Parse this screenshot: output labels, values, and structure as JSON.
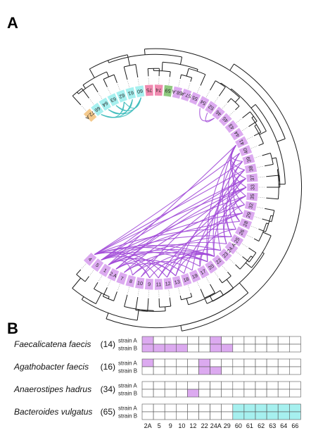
{
  "panel_a": {
    "label": "A",
    "colors": {
      "purple": "#dcaaf0",
      "cyan": "#a6f0ef",
      "pink": "#f08ab0",
      "green": "#8ec97e",
      "orange": "#f4c98c",
      "arc_purple": "#a24bd8",
      "arc_cyan": "#3fbdbd",
      "tree": "#1a1a1a"
    },
    "segments": [
      {
        "label": "72.A",
        "color": "orange"
      },
      {
        "label": "66",
        "color": "cyan"
      },
      {
        "label": "64",
        "color": "cyan"
      },
      {
        "label": "63",
        "color": "cyan"
      },
      {
        "label": "62",
        "color": "cyan"
      },
      {
        "label": "61",
        "color": "cyan"
      },
      {
        "label": "60",
        "color": "cyan"
      },
      {
        "label": "75",
        "color": "pink"
      },
      {
        "label": "74",
        "color": "pink"
      },
      {
        "label": "59",
        "color": "green"
      },
      {
        "label": "58.A",
        "color": "purple"
      },
      {
        "label": "57.A",
        "color": "purple"
      },
      {
        "label": "55",
        "color": "purple"
      },
      {
        "label": "54",
        "color": "purple"
      },
      {
        "label": "52",
        "color": "purple"
      },
      {
        "label": "46",
        "color": "purple"
      },
      {
        "label": "45",
        "color": "purple"
      },
      {
        "label": "43",
        "color": "purple"
      },
      {
        "label": "44",
        "color": "purple"
      },
      {
        "label": "41",
        "color": "purple"
      },
      {
        "label": "40",
        "color": "purple"
      },
      {
        "label": "39",
        "color": "purple"
      },
      {
        "label": "38",
        "color": "purple"
      },
      {
        "label": "37",
        "color": "purple"
      },
      {
        "label": "33",
        "color": "purple"
      },
      {
        "label": "35",
        "color": "purple"
      },
      {
        "label": "32",
        "color": "purple"
      },
      {
        "label": "29",
        "color": "purple"
      },
      {
        "label": "28",
        "color": "purple"
      },
      {
        "label": "26",
        "color": "purple"
      },
      {
        "label": "25",
        "color": "purple"
      },
      {
        "label": "24.A",
        "color": "purple"
      },
      {
        "label": "23",
        "color": "purple"
      },
      {
        "label": "22",
        "color": "purple"
      },
      {
        "label": "20",
        "color": "purple"
      },
      {
        "label": "17",
        "color": "purple"
      },
      {
        "label": "19",
        "color": "purple"
      },
      {
        "label": "18",
        "color": "purple"
      },
      {
        "label": "13",
        "color": "purple"
      },
      {
        "label": "12",
        "color": "purple"
      },
      {
        "label": "11",
        "color": "purple"
      },
      {
        "label": "9",
        "color": "purple"
      },
      {
        "label": "10",
        "color": "purple"
      },
      {
        "label": "8",
        "color": "purple"
      },
      {
        "label": "7",
        "color": "purple"
      },
      {
        "label": "2.A",
        "color": "purple"
      },
      {
        "label": "1",
        "color": "purple"
      },
      {
        "label": "5",
        "color": "purple"
      },
      {
        "label": "4",
        "color": "purple"
      }
    ],
    "links": [
      [
        "4",
        "9"
      ],
      [
        "4",
        "12"
      ],
      [
        "4",
        "20"
      ],
      [
        "4",
        "22"
      ],
      [
        "4",
        "26"
      ],
      [
        "4",
        "33"
      ],
      [
        "4",
        "38"
      ],
      [
        "4",
        "40"
      ],
      [
        "5",
        "11"
      ],
      [
        "5",
        "17"
      ],
      [
        "5",
        "23"
      ],
      [
        "5",
        "25"
      ],
      [
        "5",
        "29"
      ],
      [
        "5",
        "37"
      ],
      [
        "5",
        "39"
      ],
      [
        "1",
        "8"
      ],
      [
        "1",
        "13"
      ],
      [
        "1",
        "20"
      ],
      [
        "1",
        "22"
      ],
      [
        "1",
        "28"
      ],
      [
        "1",
        "35"
      ],
      [
        "1",
        "41"
      ],
      [
        "2.A",
        "9"
      ],
      [
        "2.A",
        "18"
      ],
      [
        "2.A",
        "24.A"
      ],
      [
        "2.A",
        "33"
      ],
      [
        "2.A",
        "37"
      ],
      [
        "7",
        "13"
      ],
      [
        "7",
        "22"
      ],
      [
        "7",
        "32"
      ],
      [
        "8",
        "19"
      ],
      [
        "8",
        "25"
      ],
      [
        "9",
        "20"
      ],
      [
        "10",
        "22"
      ],
      [
        "10",
        "33"
      ],
      [
        "11",
        "22"
      ],
      [
        "11",
        "29"
      ],
      [
        "12",
        "23"
      ],
      [
        "12",
        "35"
      ],
      [
        "13",
        "22"
      ],
      [
        "13",
        "37"
      ],
      [
        "17",
        "22"
      ],
      [
        "18",
        "29"
      ],
      [
        "19",
        "33"
      ],
      [
        "20",
        "38"
      ],
      [
        "20",
        "41"
      ],
      [
        "22",
        "35"
      ],
      [
        "22",
        "39"
      ],
      [
        "23",
        "40"
      ],
      [
        "24.A",
        "37"
      ],
      [
        "25",
        "38"
      ],
      [
        "25",
        "41"
      ],
      [
        "26",
        "37"
      ],
      [
        "28",
        "35"
      ],
      [
        "28",
        "40"
      ],
      [
        "29",
        "38"
      ],
      [
        "32",
        "39"
      ],
      [
        "33",
        "41"
      ],
      [
        "35",
        "40"
      ],
      [
        "37",
        "41"
      ],
      [
        "38",
        "41"
      ],
      [
        "39",
        "41"
      ],
      [
        "24.A",
        "32"
      ],
      [
        "17",
        "26"
      ],
      [
        "46",
        "52"
      ],
      [
        "46",
        "54"
      ],
      [
        "66",
        "62"
      ],
      [
        "66",
        "61"
      ],
      [
        "66",
        "60"
      ],
      [
        "64",
        "62"
      ],
      [
        "64",
        "61"
      ],
      [
        "64",
        "60"
      ],
      [
        "63",
        "61"
      ],
      [
        "63",
        "60"
      ],
      [
        "62",
        "60"
      ]
    ]
  },
  "panel_b": {
    "label": "B",
    "fill_colors": {
      "purple": "#dcaaf0",
      "cyan": "#a6f0ef"
    },
    "columns": [
      "2A",
      "5",
      "9",
      "10",
      "12",
      "22",
      "24A",
      "29",
      "60",
      "61",
      "62",
      "63",
      "64",
      "66"
    ],
    "species": [
      {
        "name": "Faecalicatena faecis",
        "count": "(14)",
        "rows": [
          {
            "label": "strain A",
            "filled": [
              "2A",
              "24A"
            ],
            "color": "purple"
          },
          {
            "label": "strain B",
            "filled": [
              "2A",
              "5",
              "9",
              "10",
              "24A",
              "29"
            ],
            "color": "purple"
          }
        ]
      },
      {
        "name": "Agathobacter faecis",
        "count": "(16)",
        "rows": [
          {
            "label": "strain A",
            "filled": [
              "2A",
              "22"
            ],
            "color": "purple"
          },
          {
            "label": "strain B",
            "filled": [
              "22",
              "24A"
            ],
            "color": "purple"
          }
        ]
      },
      {
        "name": "Anaerostipes hadrus",
        "count": "(34)",
        "rows": [
          {
            "label": "strain A",
            "filled": [],
            "color": "purple"
          },
          {
            "label": "strain B",
            "filled": [
              "12"
            ],
            "color": "purple"
          }
        ]
      },
      {
        "name": "Bacteroides vulgatus",
        "count": "(65)",
        "rows": [
          {
            "label": "strain A",
            "filled": [
              "60",
              "61",
              "62",
              "63",
              "64",
              "66"
            ],
            "color": "cyan"
          },
          {
            "label": "strain B",
            "filled": [
              "60",
              "61",
              "62",
              "63",
              "64",
              "66"
            ],
            "color": "cyan"
          }
        ]
      }
    ]
  }
}
